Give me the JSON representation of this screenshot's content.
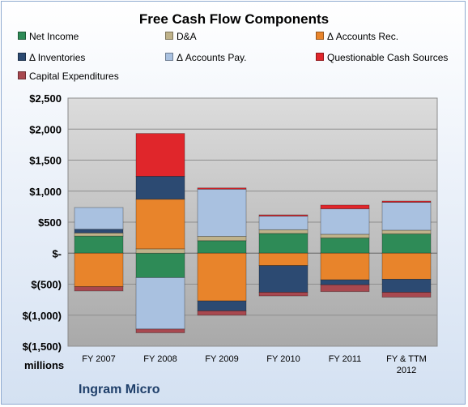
{
  "chart_data": {
    "type": "bar",
    "subtype": "stacked",
    "title": "Free Cash Flow Components",
    "units_label": "millions",
    "company": "Ingram Micro",
    "categories": [
      "FY 2007",
      "FY 2008",
      "FY 2009",
      "FY 2010",
      "FY 2011",
      "FY & TTM 2012"
    ],
    "ylim": [
      -1500,
      2500
    ],
    "yticks": [
      -1500,
      -1000,
      -500,
      0,
      500,
      1000,
      1500,
      2000,
      2500
    ],
    "ytick_labels": [
      "$(1,500)",
      "$(1,000)",
      "$(500)",
      "$-",
      "$500",
      "$1,000",
      "$1,500",
      "$2,000",
      "$2,500"
    ],
    "grid": true,
    "legend_position": "top",
    "series": [
      {
        "name": "Net Income",
        "color": "#2e8b57",
        "values": [
          276,
          -394,
          202,
          318,
          245,
          310
        ]
      },
      {
        "name": "D&A",
        "color": "#bfb28a",
        "values": [
          50,
          70,
          70,
          60,
          60,
          60
        ]
      },
      {
        "name": "Δ Accounts Rec.",
        "color": "#e8842b",
        "values": [
          -540,
          800,
          -770,
          -200,
          -430,
          -420
        ]
      },
      {
        "name": "Δ Inventories",
        "color": "#2c4a72",
        "values": [
          60,
          370,
          -160,
          -430,
          -80,
          -210
        ]
      },
      {
        "name": "Δ Accounts Pay.",
        "color": "#a9c1e0",
        "values": [
          350,
          -830,
          760,
          220,
          410,
          450
        ]
      },
      {
        "name": "Questionable Cash Sources",
        "color": "#e0262b",
        "values": [
          0,
          690,
          20,
          20,
          60,
          20
        ]
      },
      {
        "name": "Capital Expenditures",
        "color": "#a8484f",
        "values": [
          -70,
          -60,
          -70,
          -60,
          -110,
          -80
        ]
      }
    ]
  }
}
